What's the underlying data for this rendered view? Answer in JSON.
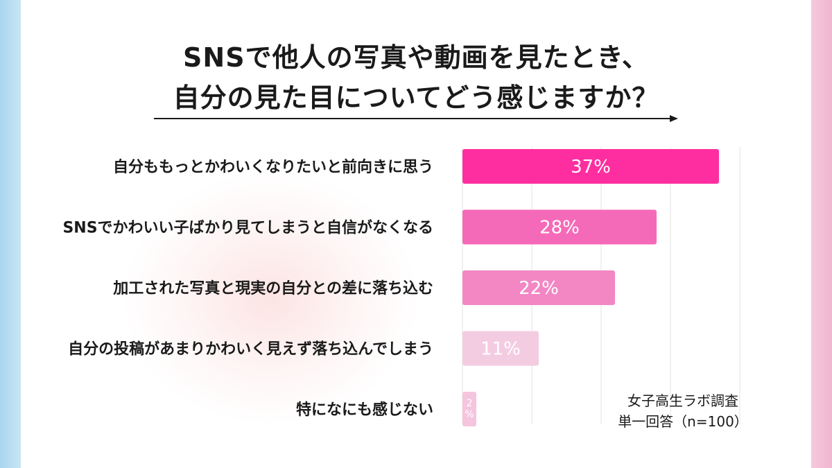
{
  "title": {
    "line1": "SNSで他人の写真や動画を見たとき、",
    "line2": "自分の見た目についてどう感じますか？"
  },
  "note": {
    "source": "女子高生ラボ調査",
    "method": "単一回答（n=100）"
  },
  "colors": {
    "bar1": "#ff2ea0",
    "bar2": "#f56ab8",
    "bar3": "#f287c4",
    "bar4": "#f4cce2",
    "bar5": "#f5c4de",
    "grid": "#e3e3e3"
  },
  "chart_data": {
    "type": "bar",
    "orientation": "horizontal",
    "categories": [
      "自分ももっとかわいくなりたいと前向きに思う",
      "SNSでかわいい子ばかり見てしまうと自信がなくなる",
      "加工された写真と現実の自分との差に落ち込む",
      "自分の投稿があまりかわいく見えず落ち込んでしまう",
      "特になにも感じない"
    ],
    "values": [
      37,
      28,
      22,
      11,
      2
    ],
    "value_labels": [
      "37%",
      "28%",
      "22%",
      "11%",
      "2%"
    ],
    "unit": "%",
    "xlim": [
      0,
      40
    ],
    "grid": true,
    "legend": "none"
  }
}
